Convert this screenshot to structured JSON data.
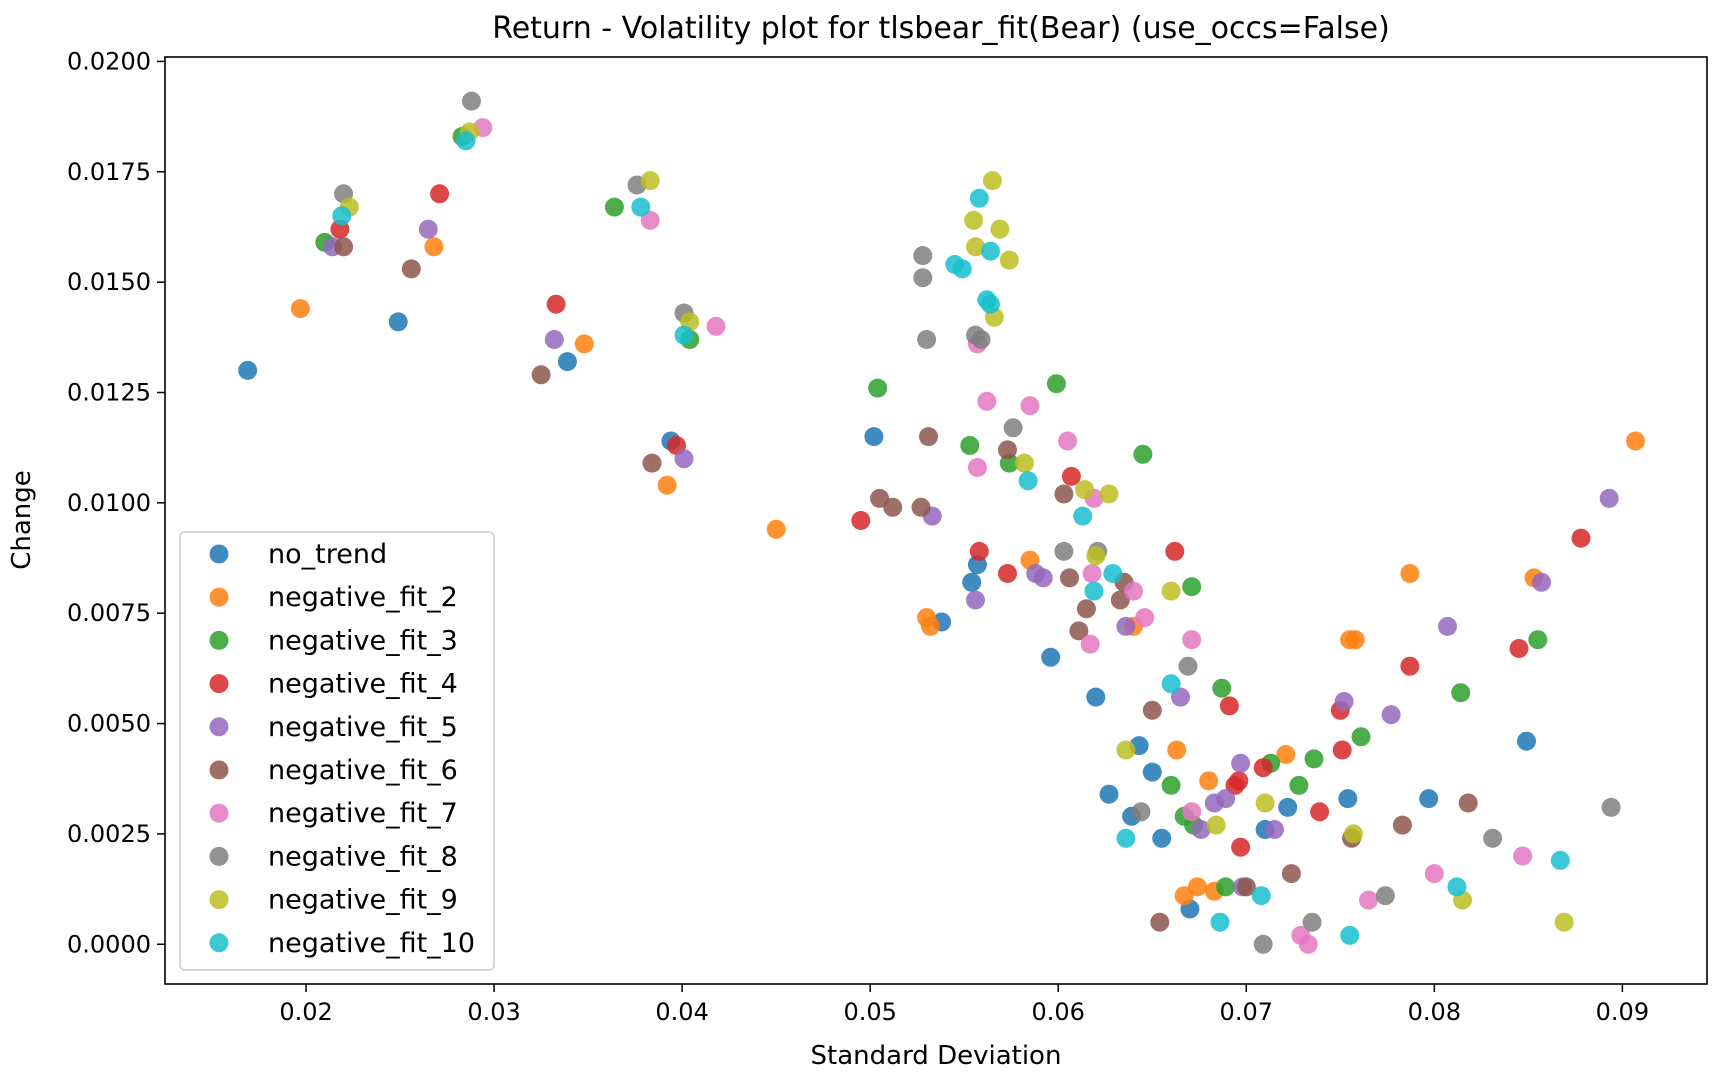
{
  "chart_data": {
    "type": "scatter",
    "title": "Return - Volatility plot for tlsbear_fit(Bear) (use_occs=False)",
    "xlabel": "Standard Deviation",
    "ylabel": "Change",
    "xlim": [
      0.0125,
      0.0945
    ],
    "ylim": [
      -0.0009,
      0.0201
    ],
    "xticks": [
      0.02,
      0.03,
      0.04,
      0.05,
      0.06,
      0.07,
      0.08,
      0.09
    ],
    "xtick_labels": [
      "0.02",
      "0.03",
      "0.04",
      "0.05",
      "0.06",
      "0.07",
      "0.08",
      "0.09"
    ],
    "yticks": [
      0.0,
      0.0025,
      0.005,
      0.0075,
      0.01,
      0.0125,
      0.015,
      0.0175,
      0.02
    ],
    "ytick_labels": [
      "0.0000",
      "0.0025",
      "0.0050",
      "0.0075",
      "0.0100",
      "0.0125",
      "0.0150",
      "0.0175",
      "0.0200"
    ],
    "grid": false,
    "legend_position": "lower-left",
    "series": [
      {
        "name": "no_trend",
        "color": "#1f77b4",
        "points": [
          [
            0.0169,
            0.013
          ],
          [
            0.0249,
            0.0141
          ],
          [
            0.0339,
            0.0132
          ],
          [
            0.0394,
            0.0114
          ],
          [
            0.0502,
            0.0115
          ],
          [
            0.0538,
            0.0073
          ],
          [
            0.0554,
            0.0082
          ],
          [
            0.0557,
            0.0086
          ],
          [
            0.0596,
            0.0065
          ],
          [
            0.062,
            0.0056
          ],
          [
            0.0627,
            0.0034
          ],
          [
            0.0639,
            0.0029
          ],
          [
            0.0643,
            0.0045
          ],
          [
            0.065,
            0.0039
          ],
          [
            0.0655,
            0.0024
          ],
          [
            0.067,
            0.0008
          ],
          [
            0.071,
            0.0026
          ],
          [
            0.0722,
            0.0031
          ],
          [
            0.0754,
            0.0033
          ],
          [
            0.0797,
            0.0033
          ],
          [
            0.0849,
            0.0046
          ]
        ]
      },
      {
        "name": "negative_fit_2",
        "color": "#ff7f0e",
        "points": [
          [
            0.0197,
            0.0144
          ],
          [
            0.0268,
            0.0158
          ],
          [
            0.0348,
            0.0136
          ],
          [
            0.0392,
            0.0104
          ],
          [
            0.045,
            0.0094
          ],
          [
            0.053,
            0.0074
          ],
          [
            0.0532,
            0.0072
          ],
          [
            0.0585,
            0.0087
          ],
          [
            0.064,
            0.0072
          ],
          [
            0.0663,
            0.0044
          ],
          [
            0.0667,
            0.0011
          ],
          [
            0.0674,
            0.0013
          ],
          [
            0.068,
            0.0037
          ],
          [
            0.0683,
            0.0012
          ],
          [
            0.0721,
            0.0043
          ],
          [
            0.0755,
            0.0069
          ],
          [
            0.0758,
            0.0069
          ],
          [
            0.0787,
            0.0084
          ],
          [
            0.0853,
            0.0083
          ],
          [
            0.0907,
            0.0114
          ]
        ]
      },
      {
        "name": "negative_fit_3",
        "color": "#2ca02c",
        "points": [
          [
            0.021,
            0.0159
          ],
          [
            0.0283,
            0.0183
          ],
          [
            0.0364,
            0.0167
          ],
          [
            0.0404,
            0.0137
          ],
          [
            0.0504,
            0.0126
          ],
          [
            0.0553,
            0.0113
          ],
          [
            0.0574,
            0.0109
          ],
          [
            0.0599,
            0.0127
          ],
          [
            0.0645,
            0.0111
          ],
          [
            0.066,
            0.0036
          ],
          [
            0.0667,
            0.0029
          ],
          [
            0.0671,
            0.0081
          ],
          [
            0.0672,
            0.0027
          ],
          [
            0.0687,
            0.0058
          ],
          [
            0.0689,
            0.0013
          ],
          [
            0.0713,
            0.0041
          ],
          [
            0.0728,
            0.0036
          ],
          [
            0.0736,
            0.0042
          ],
          [
            0.0761,
            0.0047
          ],
          [
            0.0814,
            0.0057
          ],
          [
            0.0855,
            0.0069
          ]
        ]
      },
      {
        "name": "negative_fit_4",
        "color": "#d62728",
        "points": [
          [
            0.0218,
            0.0162
          ],
          [
            0.0271,
            0.017
          ],
          [
            0.0333,
            0.0145
          ],
          [
            0.0397,
            0.0113
          ],
          [
            0.0495,
            0.0096
          ],
          [
            0.0558,
            0.0089
          ],
          [
            0.0573,
            0.0084
          ],
          [
            0.0607,
            0.0106
          ],
          [
            0.0662,
            0.0089
          ],
          [
            0.0691,
            0.0054
          ],
          [
            0.0694,
            0.0036
          ],
          [
            0.0696,
            0.0037
          ],
          [
            0.0697,
            0.0022
          ],
          [
            0.0709,
            0.004
          ],
          [
            0.0739,
            0.003
          ],
          [
            0.075,
            0.0053
          ],
          [
            0.0751,
            0.0044
          ],
          [
            0.0787,
            0.0063
          ],
          [
            0.0845,
            0.0067
          ],
          [
            0.0878,
            0.0092
          ]
        ]
      },
      {
        "name": "negative_fit_5",
        "color": "#9467bd",
        "points": [
          [
            0.0214,
            0.0158
          ],
          [
            0.0265,
            0.0162
          ],
          [
            0.0332,
            0.0137
          ],
          [
            0.0401,
            0.011
          ],
          [
            0.0533,
            0.0097
          ],
          [
            0.0556,
            0.0078
          ],
          [
            0.0588,
            0.0084
          ],
          [
            0.0592,
            0.0083
          ],
          [
            0.0636,
            0.0072
          ],
          [
            0.0665,
            0.0056
          ],
          [
            0.0676,
            0.0026
          ],
          [
            0.0683,
            0.0032
          ],
          [
            0.0689,
            0.0033
          ],
          [
            0.0697,
            0.0041
          ],
          [
            0.0698,
            0.0013
          ],
          [
            0.0715,
            0.0026
          ],
          [
            0.0752,
            0.0055
          ],
          [
            0.0777,
            0.0052
          ],
          [
            0.0807,
            0.0072
          ],
          [
            0.0857,
            0.0082
          ],
          [
            0.0893,
            0.0101
          ]
        ]
      },
      {
        "name": "negative_fit_6",
        "color": "#8c564b",
        "points": [
          [
            0.022,
            0.0158
          ],
          [
            0.0256,
            0.0153
          ],
          [
            0.0325,
            0.0129
          ],
          [
            0.0384,
            0.0109
          ],
          [
            0.0505,
            0.0101
          ],
          [
            0.0512,
            0.0099
          ],
          [
            0.0527,
            0.0099
          ],
          [
            0.0531,
            0.0115
          ],
          [
            0.0573,
            0.0112
          ],
          [
            0.0603,
            0.0102
          ],
          [
            0.0606,
            0.0083
          ],
          [
            0.0611,
            0.0071
          ],
          [
            0.0615,
            0.0076
          ],
          [
            0.0633,
            0.0078
          ],
          [
            0.0635,
            0.0082
          ],
          [
            0.065,
            0.0053
          ],
          [
            0.0654,
            0.0005
          ],
          [
            0.07,
            0.0013
          ],
          [
            0.0724,
            0.0016
          ],
          [
            0.0756,
            0.0024
          ],
          [
            0.0783,
            0.0027
          ],
          [
            0.0818,
            0.0032
          ]
        ]
      },
      {
        "name": "negative_fit_7",
        "color": "#e377c2",
        "points": [
          [
            0.0294,
            0.0185
          ],
          [
            0.0383,
            0.0164
          ],
          [
            0.0418,
            0.014
          ],
          [
            0.0557,
            0.0136
          ],
          [
            0.0557,
            0.0108
          ],
          [
            0.0562,
            0.0123
          ],
          [
            0.0585,
            0.0122
          ],
          [
            0.0605,
            0.0114
          ],
          [
            0.0617,
            0.0068
          ],
          [
            0.0618,
            0.0084
          ],
          [
            0.0619,
            0.0101
          ],
          [
            0.064,
            0.008
          ],
          [
            0.0646,
            0.0074
          ],
          [
            0.0671,
            0.0069
          ],
          [
            0.0671,
            0.003
          ],
          [
            0.0729,
            0.0002
          ],
          [
            0.0733,
            0.0
          ],
          [
            0.0765,
            0.001
          ],
          [
            0.08,
            0.0016
          ],
          [
            0.0847,
            0.002
          ]
        ]
      },
      {
        "name": "negative_fit_8",
        "color": "#7f7f7f",
        "points": [
          [
            0.022,
            0.017
          ],
          [
            0.0288,
            0.0191
          ],
          [
            0.0376,
            0.0172
          ],
          [
            0.0401,
            0.0143
          ],
          [
            0.0528,
            0.0156
          ],
          [
            0.0528,
            0.0151
          ],
          [
            0.053,
            0.0137
          ],
          [
            0.0556,
            0.0138
          ],
          [
            0.0559,
            0.0137
          ],
          [
            0.0576,
            0.0117
          ],
          [
            0.0603,
            0.0089
          ],
          [
            0.0621,
            0.0089
          ],
          [
            0.0644,
            0.003
          ],
          [
            0.0669,
            0.0063
          ],
          [
            0.0709,
            0.0
          ],
          [
            0.0735,
            0.0005
          ],
          [
            0.0774,
            0.0011
          ],
          [
            0.0831,
            0.0024
          ],
          [
            0.0894,
            0.0031
          ]
        ]
      },
      {
        "name": "negative_fit_9",
        "color": "#bcbd22",
        "points": [
          [
            0.0223,
            0.0167
          ],
          [
            0.0287,
            0.0184
          ],
          [
            0.0383,
            0.0173
          ],
          [
            0.0404,
            0.0141
          ],
          [
            0.0555,
            0.0164
          ],
          [
            0.0556,
            0.0158
          ],
          [
            0.0565,
            0.0173
          ],
          [
            0.0566,
            0.0142
          ],
          [
            0.0569,
            0.0162
          ],
          [
            0.0574,
            0.0155
          ],
          [
            0.0582,
            0.0109
          ],
          [
            0.0614,
            0.0103
          ],
          [
            0.062,
            0.0088
          ],
          [
            0.0627,
            0.0102
          ],
          [
            0.0636,
            0.0044
          ],
          [
            0.066,
            0.008
          ],
          [
            0.0684,
            0.0027
          ],
          [
            0.071,
            0.0032
          ],
          [
            0.0757,
            0.0025
          ],
          [
            0.0815,
            0.001
          ],
          [
            0.0869,
            0.0005
          ]
        ]
      },
      {
        "name": "negative_fit_10",
        "color": "#17becf",
        "points": [
          [
            0.0219,
            0.0165
          ],
          [
            0.0285,
            0.0182
          ],
          [
            0.0378,
            0.0167
          ],
          [
            0.0401,
            0.0138
          ],
          [
            0.0545,
            0.0154
          ],
          [
            0.0549,
            0.0153
          ],
          [
            0.0558,
            0.0169
          ],
          [
            0.0562,
            0.0146
          ],
          [
            0.0564,
            0.0145
          ],
          [
            0.0564,
            0.0157
          ],
          [
            0.0584,
            0.0105
          ],
          [
            0.0613,
            0.0097
          ],
          [
            0.0619,
            0.008
          ],
          [
            0.0629,
            0.0084
          ],
          [
            0.0636,
            0.0024
          ],
          [
            0.066,
            0.0059
          ],
          [
            0.0686,
            0.0005
          ],
          [
            0.0708,
            0.0011
          ],
          [
            0.0755,
            0.0002
          ],
          [
            0.0812,
            0.0013
          ],
          [
            0.0867,
            0.0019
          ]
        ]
      }
    ]
  }
}
